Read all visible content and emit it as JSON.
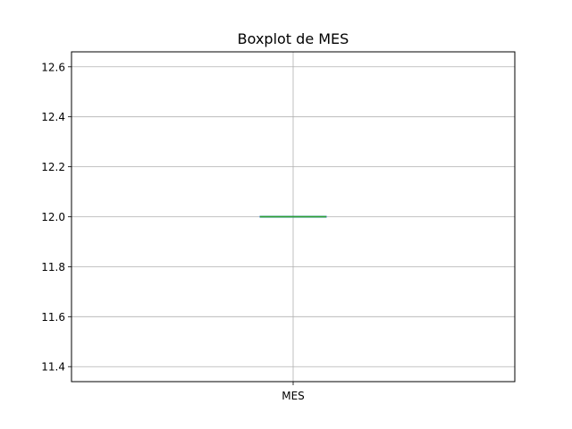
{
  "chart_data": {
    "type": "box",
    "title": "Boxplot de MES",
    "xlabel": "",
    "ylabel": "",
    "categories": [
      "MES"
    ],
    "boxes": [
      {
        "name": "MES",
        "min": 12.0,
        "q1": 12.0,
        "median": 12.0,
        "q3": 12.0,
        "max": 12.0,
        "outliers": []
      }
    ],
    "ylim": [
      11.34,
      12.66
    ],
    "yticks": [
      11.4,
      11.6,
      11.8,
      12.0,
      12.2,
      12.4,
      12.6
    ],
    "ytick_labels": [
      "11.4",
      "11.6",
      "11.8",
      "12.0",
      "12.2",
      "12.4",
      "12.6"
    ],
    "grid": true,
    "colors": {
      "box": "#1f77b4",
      "median": "#2ca02c",
      "grid": "#b0b0b0",
      "axes": "#000000"
    }
  }
}
